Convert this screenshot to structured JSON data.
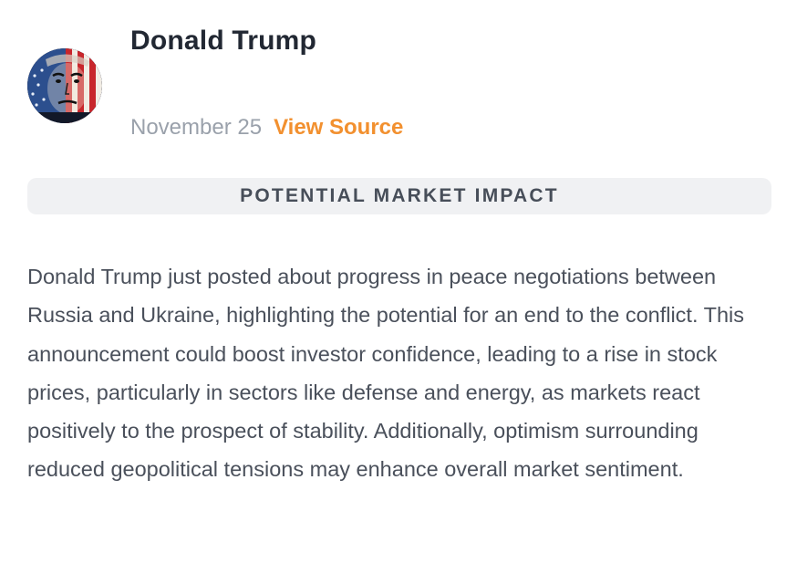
{
  "post": {
    "author": "Donald Trump",
    "date": "November 25",
    "source_link_label": "View Source",
    "section_label": "POTENTIAL MARKET IMPACT",
    "body": "Donald Trump just posted about progress in peace negotiations between Russia and Ukraine, highlighting the potential for an end to the conflict. This announcement could boost investor confidence, leading to a rise in stock prices, particularly in sectors like defense and energy, as markets react positively to the prospect of stability. Additionally, optimism surrounding reduced geopolitical tensions may enhance overall market sentiment."
  },
  "colors": {
    "link": "#f2902f",
    "muted_text": "#9aa1ab",
    "section_background": "#f0f1f3",
    "body_text": "#4a505b",
    "heading": "#222833"
  },
  "icons": {
    "avatar": "author-avatar-flag-portrait"
  }
}
